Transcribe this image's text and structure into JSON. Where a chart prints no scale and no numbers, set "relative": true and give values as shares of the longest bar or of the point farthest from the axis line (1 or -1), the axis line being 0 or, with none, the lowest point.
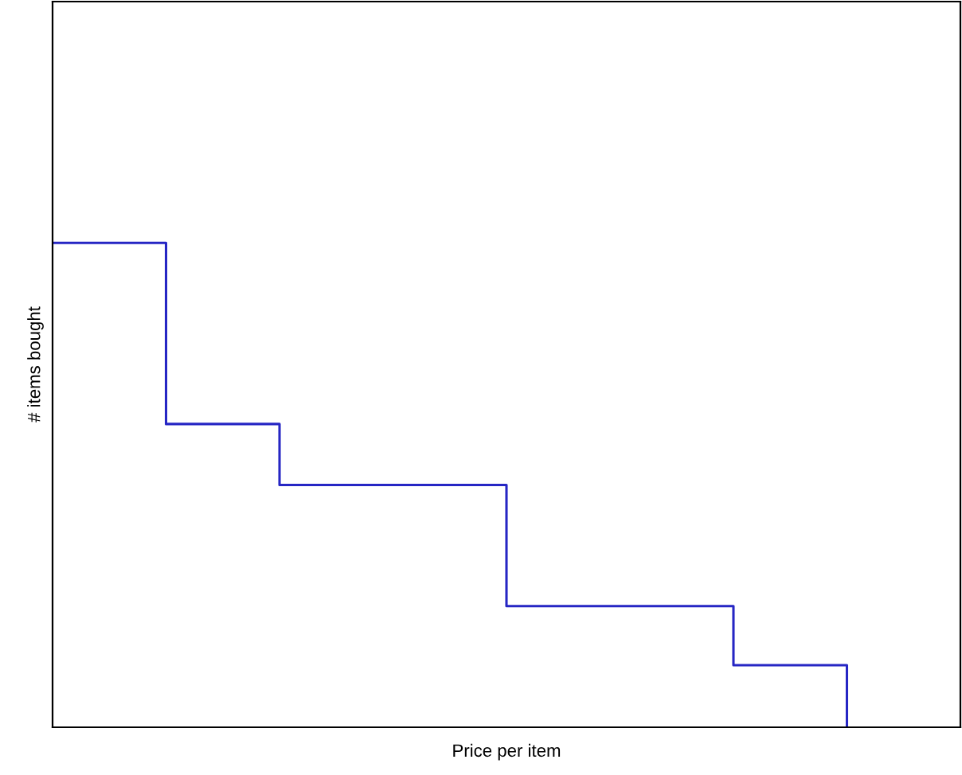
{
  "chart_data": {
    "type": "step",
    "relative": true,
    "xlabel": "Price per item",
    "ylabel": "# items bought",
    "categories": [
      null,
      null,
      null,
      null,
      null,
      null,
      null,
      null
    ],
    "series": [
      {
        "color": "#2626c4",
        "values": [
          1,
          0.626,
          0.5,
          0.5,
          0.25,
          0.25,
          0.128,
          0
        ]
      }
    ],
    "grid": false,
    "legend": false
  }
}
